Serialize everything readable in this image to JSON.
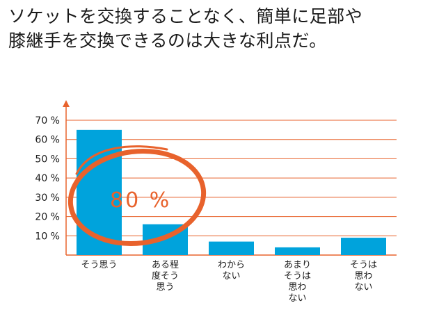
{
  "title_lines": [
    "ソケットを交換することなく、簡単に足部や",
    "膝継手を交換できるのは大きな利点だ。"
  ],
  "colors": {
    "bar": "#00a3dc",
    "accent": "#e8622c",
    "grid": "#e8622c"
  },
  "chart_data": {
    "type": "bar",
    "title": "ソケットを交換することなく、簡単に足部や膝継手を交換できるのは大きな利点だ。",
    "categories": [
      "そう思う",
      "ある程度そう思う",
      "わからない",
      "あまりそう思わない",
      "そうは思わない"
    ],
    "category_label_lines": [
      [
        "そう思う"
      ],
      [
        "ある程",
        "度そう",
        "思う"
      ],
      [
        "わから",
        "ない"
      ],
      [
        "あまり",
        "そうは",
        "思わ",
        "ない"
      ],
      [
        "そうは",
        "思わ",
        "ない"
      ]
    ],
    "values": [
      65,
      16,
      7,
      4,
      9
    ],
    "ylim": [
      0,
      70
    ],
    "yticks": [
      10,
      20,
      30,
      40,
      50,
      60,
      70
    ],
    "ytick_labels": [
      "10 %",
      "20 %",
      "30 %",
      "40 %",
      "50 %",
      "60 %",
      "70 %"
    ],
    "grid": true,
    "annotation": {
      "text": "80 %",
      "encircles_categories": [
        "そう思う",
        "ある程度そう思う"
      ]
    }
  }
}
